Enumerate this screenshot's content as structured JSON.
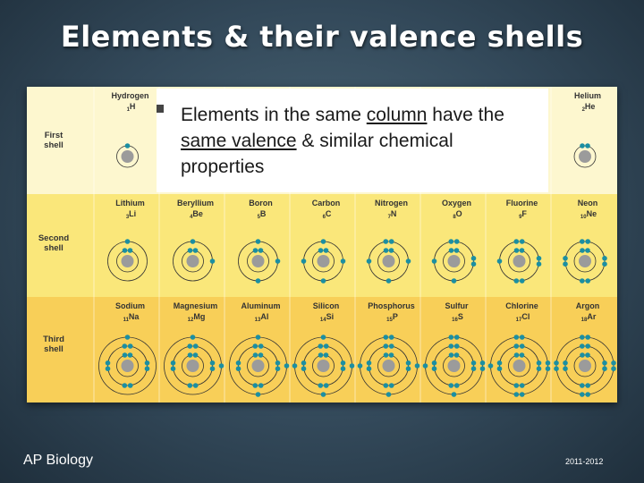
{
  "title": "Elements & their valence shells",
  "bullet": {
    "parts": [
      "Elements in the same ",
      "column",
      " have the ",
      "same valence",
      " & similar chemical properties"
    ]
  },
  "footer": {
    "left": "AP Biology",
    "right": "2011-2012"
  },
  "colors": {
    "row1": "#fdf7cf",
    "row2": "#fae77a",
    "row3": "#f8cf58",
    "electron": "#1b8fa2",
    "nucleus": "#9b9b9b"
  },
  "shell_labels": [
    [
      "First",
      "shell"
    ],
    [
      "Second",
      "shell"
    ],
    [
      "Third",
      "shell"
    ]
  ],
  "elements": [
    {
      "name": "Hydrogen",
      "symbol": "H",
      "z": 1,
      "row": 1,
      "col": 1,
      "shells": [
        1
      ]
    },
    {
      "name": "Helium",
      "symbol": "He",
      "z": 2,
      "row": 1,
      "col": 8,
      "shells": [
        2
      ]
    },
    {
      "name": "Lithium",
      "symbol": "Li",
      "z": 3,
      "row": 2,
      "col": 1,
      "shells": [
        2,
        1
      ]
    },
    {
      "name": "Beryllium",
      "symbol": "Be",
      "z": 4,
      "row": 2,
      "col": 2,
      "shells": [
        2,
        2
      ]
    },
    {
      "name": "Boron",
      "symbol": "B",
      "z": 5,
      "row": 2,
      "col": 3,
      "shells": [
        2,
        3
      ]
    },
    {
      "name": "Carbon",
      "symbol": "C",
      "z": 6,
      "row": 2,
      "col": 4,
      "shells": [
        2,
        4
      ]
    },
    {
      "name": "Nitrogen",
      "symbol": "N",
      "z": 7,
      "row": 2,
      "col": 5,
      "shells": [
        2,
        5
      ]
    },
    {
      "name": "Oxygen",
      "symbol": "O",
      "z": 8,
      "row": 2,
      "col": 6,
      "shells": [
        2,
        6
      ]
    },
    {
      "name": "Fluorine",
      "symbol": "F",
      "z": 9,
      "row": 2,
      "col": 7,
      "shells": [
        2,
        7
      ]
    },
    {
      "name": "Neon",
      "symbol": "Ne",
      "z": 10,
      "row": 2,
      "col": 8,
      "shells": [
        2,
        8
      ]
    },
    {
      "name": "Sodium",
      "symbol": "Na",
      "z": 11,
      "row": 3,
      "col": 1,
      "shells": [
        2,
        8,
        1
      ]
    },
    {
      "name": "Magnesium",
      "symbol": "Mg",
      "z": 12,
      "row": 3,
      "col": 2,
      "shells": [
        2,
        8,
        2
      ]
    },
    {
      "name": "Aluminum",
      "symbol": "Al",
      "z": 13,
      "row": 3,
      "col": 3,
      "shells": [
        2,
        8,
        3
      ]
    },
    {
      "name": "Silicon",
      "symbol": "Si",
      "z": 14,
      "row": 3,
      "col": 4,
      "shells": [
        2,
        8,
        4
      ]
    },
    {
      "name": "Phosphorus",
      "symbol": "P",
      "z": 15,
      "row": 3,
      "col": 5,
      "shells": [
        2,
        8,
        5
      ]
    },
    {
      "name": "Sulfur",
      "symbol": "S",
      "z": 16,
      "row": 3,
      "col": 6,
      "shells": [
        2,
        8,
        6
      ]
    },
    {
      "name": "Chlorine",
      "symbol": "Cl",
      "z": 17,
      "row": 3,
      "col": 7,
      "shells": [
        2,
        8,
        7
      ]
    },
    {
      "name": "Argon",
      "symbol": "Ar",
      "z": 18,
      "row": 3,
      "col": 8,
      "shells": [
        2,
        8,
        8
      ]
    }
  ]
}
